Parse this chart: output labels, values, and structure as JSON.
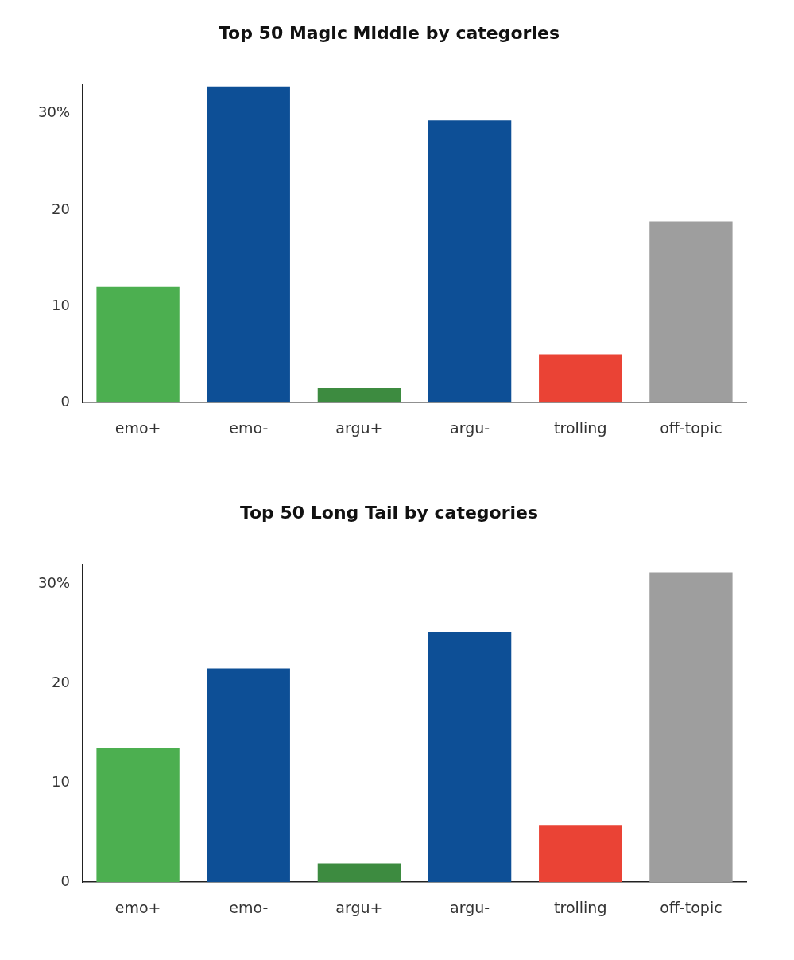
{
  "chart_data": [
    {
      "type": "bar",
      "title": "Top 50 Magic Middle by categories",
      "categories": [
        "emo+",
        "emo-",
        "argu+",
        "argu-",
        "trolling",
        "off-topic"
      ],
      "values": [
        12,
        32.8,
        1.5,
        29.3,
        5,
        18.8
      ],
      "colors": [
        "#4caf50",
        "#0d4f96",
        "#3d8b40",
        "#0d4f96",
        "#ea4335",
        "#9e9e9e"
      ],
      "ylim": [
        0,
        33
      ],
      "yticks": [
        0,
        10,
        20,
        {
          "value": 30,
          "label": "30%"
        }
      ],
      "grid": false
    },
    {
      "type": "bar",
      "title": "Top 50 Long Tail by categories",
      "categories": [
        "emo+",
        "emo-",
        "argu+",
        "argu-",
        "trolling",
        "off-topic"
      ],
      "values": [
        13.5,
        21.5,
        1.9,
        25.2,
        5.75,
        31.2
      ],
      "colors": [
        "#4caf50",
        "#0d4f96",
        "#3d8b40",
        "#0d4f96",
        "#ea4335",
        "#9e9e9e"
      ],
      "ylim": [
        0,
        32
      ],
      "yticks": [
        0,
        10,
        20,
        {
          "value": 30,
          "label": "30%"
        }
      ],
      "grid": false
    }
  ]
}
